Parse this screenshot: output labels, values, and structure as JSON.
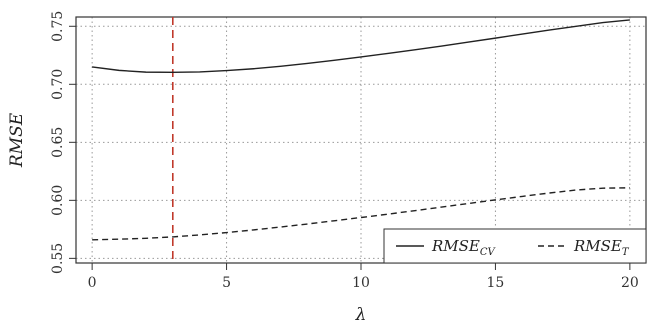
{
  "chart_data": {
    "type": "line",
    "xlabel": "λ",
    "ylabel": "RMSE",
    "xlim": [
      -0.6,
      20.6
    ],
    "ylim": [
      0.546,
      0.758
    ],
    "x_ticks": [
      "0",
      "5",
      "10",
      "15",
      "20"
    ],
    "y_ticks": [
      "0.55",
      "0.60",
      "0.65",
      "0.70",
      "0.75"
    ],
    "grid": true,
    "grid_style": "dotted",
    "legend_position": "bottom-right",
    "series": [
      {
        "name": "RMSE_CV",
        "name_main": "RMSE",
        "name_sub": "CV",
        "style": "solid",
        "color": "#222222",
        "x": [
          0,
          1,
          2,
          3,
          4,
          5,
          6,
          7,
          8,
          9,
          10,
          11,
          12,
          13,
          14,
          15,
          16,
          17,
          18,
          19,
          20
        ],
        "y": [
          0.715,
          0.712,
          0.7105,
          0.7103,
          0.7107,
          0.7118,
          0.7134,
          0.7155,
          0.718,
          0.7207,
          0.7236,
          0.7266,
          0.7297,
          0.733,
          0.7364,
          0.7398,
          0.7433,
          0.7467,
          0.75,
          0.7532,
          0.7555
        ]
      },
      {
        "name": "RMSE_T",
        "name_main": "RMSE",
        "name_sub": "T",
        "style": "dashed",
        "color": "#222222",
        "x": [
          0,
          1,
          2,
          3,
          4,
          5,
          6,
          7,
          8,
          9,
          10,
          11,
          12,
          13,
          14,
          15,
          16,
          17,
          18,
          19,
          20
        ],
        "y": [
          0.566,
          0.5665,
          0.5673,
          0.5685,
          0.5702,
          0.5722,
          0.5745,
          0.577,
          0.5796,
          0.5824,
          0.5852,
          0.5881,
          0.5911,
          0.5942,
          0.5973,
          0.6004,
          0.6034,
          0.6063,
          0.6089,
          0.6105,
          0.6108
        ]
      }
    ],
    "vline": {
      "x": 3,
      "color": "#c0392b",
      "style": "dashed"
    }
  }
}
